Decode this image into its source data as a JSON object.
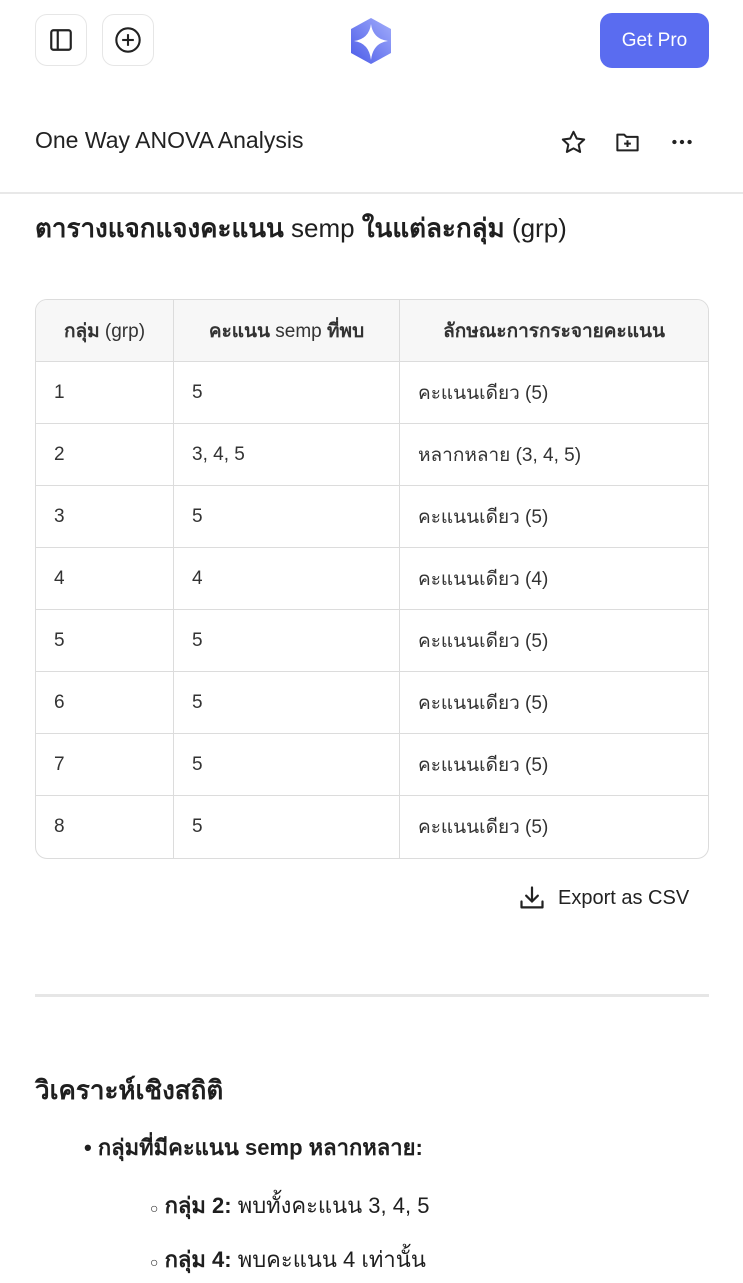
{
  "header": {
    "get_pro_label": "Get Pro",
    "accent": "#5a6cf0"
  },
  "chat": {
    "title": "One Way ANOVA Analysis"
  },
  "content": {
    "heading": {
      "bold1": "ตารางแจกแจงคะแนน",
      "normal1": " semp ",
      "bold2": "ในแต่ละกลุ่ม",
      "normal2": " (grp)"
    },
    "table": {
      "headers": [
        {
          "bold": "กลุ่ม",
          "normal": " (grp)"
        },
        {
          "bold": "คะแนน",
          "normal": " semp ",
          "bold2": "ที่พบ"
        },
        {
          "bold": "ลักษณะการกระจายคะแนน",
          "normal": ""
        }
      ],
      "rows": [
        [
          "1",
          "5",
          "คะแนนเดียว (5)"
        ],
        [
          "2",
          "3, 4, 5",
          "หลากหลาย (3, 4, 5)"
        ],
        [
          "3",
          "5",
          "คะแนนเดียว (5)"
        ],
        [
          "4",
          "4",
          "คะแนนเดียว (4)"
        ],
        [
          "5",
          "5",
          "คะแนนเดียว (5)"
        ],
        [
          "6",
          "5",
          "คะแนนเดียว (5)"
        ],
        [
          "7",
          "5",
          "คะแนนเดียว (5)"
        ],
        [
          "8",
          "5",
          "คะแนนเดียว (5)"
        ]
      ]
    },
    "export_label": "Export as CSV",
    "section_title": "วิเคราะห์เชิงสถิติ",
    "bullet": "กลุ่มที่มีคะแนน semp หลากหลาย:",
    "sub_bullets": [
      {
        "bold": "กลุ่ม 2:",
        "text": " พบทั้งคะแนน 3, 4, 5"
      },
      {
        "bold": "กลุ่ม 4:",
        "text": " พบคะแนน 4 เท่านั้น"
      }
    ]
  }
}
